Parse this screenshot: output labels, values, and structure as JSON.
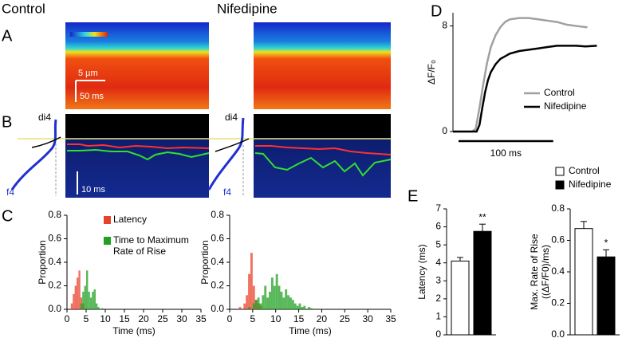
{
  "labels": {
    "control": "Control",
    "nifedipine": "Nifedipine",
    "A": "A",
    "B": "B",
    "C": "C",
    "D": "D",
    "E": "E",
    "scale_um": "5 µm",
    "scale_ms_a": "50 ms",
    "scale_ms_b": "10 ms",
    "di4_control": "di4",
    "f4_control": "f4",
    "di4_nif": "di4",
    "f4_nif": "f4"
  },
  "chart_data": [
    {
      "type": "histogram",
      "xlabel": "Time (ms)",
      "ylabel": "Proportion",
      "bins": [
        1,
        1.5,
        2,
        2.5,
        3,
        3.5,
        4,
        4.5,
        5,
        5.5,
        6,
        6.5,
        7,
        7.5,
        8,
        8.5,
        9,
        9.5,
        10
      ],
      "series": [
        {
          "name": "Latency",
          "color": "#e8432a",
          "values": [
            0.05,
            0.13,
            0.2,
            0.27,
            0.33,
            0.1,
            0.05,
            0,
            0,
            0,
            0,
            0,
            0,
            0,
            0,
            0,
            0,
            0
          ]
        },
        {
          "name": "Time to Maximum Rate of Rise",
          "color": "#22a022",
          "values": [
            0,
            0,
            0,
            0,
            0,
            0.05,
            0.15,
            0.2,
            0.33,
            0.15,
            0.1,
            0.15,
            0.17,
            0.05,
            0.02,
            0,
            0.01,
            0
          ]
        }
      ],
      "xlim": [
        0,
        35
      ],
      "xticks": [
        0,
        5,
        10,
        15,
        20,
        25,
        30,
        35
      ],
      "ylim": [
        0,
        0.8
      ],
      "yticks": [
        {
          "value": 0,
          "label": "0.0"
        },
        0.2,
        0.4,
        0.6,
        0.8
      ]
    },
    {
      "type": "histogram",
      "xlabel": "Time (ms)",
      "ylabel": "Proportion",
      "bins": [
        2,
        2.5,
        3,
        3.5,
        4,
        4.5,
        5,
        5.5,
        6,
        6.5,
        7,
        7.5,
        8,
        8.5,
        9,
        9.5,
        10,
        10.5,
        11,
        11.5,
        12,
        12.5,
        13,
        13.5,
        14,
        14.5,
        15,
        15.5,
        16,
        16.5,
        17,
        17.5,
        18,
        18.5,
        19
      ],
      "series": [
        {
          "color": "#e8432a",
          "values": [
            0.02,
            0,
            0.05,
            0.12,
            0.3,
            0.48,
            0.2,
            0.08,
            0.05,
            0.03,
            0,
            0,
            0,
            0,
            0,
            0,
            0,
            0,
            0,
            0,
            0,
            0,
            0,
            0,
            0,
            0,
            0,
            0,
            0,
            0,
            0,
            0,
            0,
            0
          ]
        },
        {
          "color": "#22a022",
          "values": [
            0,
            0,
            0,
            0,
            0.02,
            0,
            0.05,
            0.08,
            0.1,
            0.05,
            0.12,
            0.2,
            0.1,
            0.15,
            0.27,
            0.2,
            0.3,
            0.2,
            0.15,
            0.1,
            0.17,
            0.12,
            0.1,
            0.08,
            0.05,
            0.03,
            0.05,
            0.02,
            0.03,
            0,
            0.02,
            0.01,
            0,
            0
          ]
        }
      ],
      "xlim": [
        0,
        35
      ],
      "xticks": [
        0,
        5,
        10,
        15,
        20,
        25,
        30,
        35
      ],
      "ylim": [
        0,
        0.8
      ],
      "yticks": [
        {
          "value": 0,
          "label": "0.0"
        },
        0.2,
        0.4,
        0.6,
        0.8
      ]
    },
    {
      "type": "line",
      "ylabel": "ΔF/F₀",
      "legend": "lower right",
      "series": [
        {
          "name": "Control",
          "color": "#a0a0a0",
          "x": [
            0,
            10,
            20,
            24,
            28,
            32,
            36,
            40,
            45,
            50,
            55,
            60,
            70,
            80,
            90,
            100,
            110,
            120,
            130,
            142
          ],
          "values": [
            0,
            0,
            0,
            0.2,
            1.8,
            3.6,
            5.2,
            6.4,
            7.3,
            7.9,
            8.3,
            8.5,
            8.6,
            8.6,
            8.5,
            8.4,
            8.3,
            8.1,
            8.0,
            7.9
          ]
        },
        {
          "name": "Nifedipine",
          "color": "#000000",
          "x": [
            0,
            10,
            20,
            25,
            28,
            31,
            34,
            37,
            40,
            45,
            50,
            60,
            70,
            80,
            90,
            100,
            110,
            120,
            130,
            140,
            152
          ],
          "values": [
            0,
            0,
            0,
            0,
            0.5,
            1.8,
            3.0,
            3.9,
            4.5,
            5.1,
            5.5,
            5.9,
            6.1,
            6.2,
            6.3,
            6.4,
            6.5,
            6.5,
            6.5,
            6.45,
            6.5
          ]
        }
      ],
      "xlim": [
        0,
        155
      ],
      "ylim": [
        0,
        9
      ],
      "yticks": [
        0,
        8
      ],
      "scalebar": {
        "value": 100,
        "label": "100 ms"
      }
    },
    {
      "type": "bar",
      "ylabel": [
        "Latency (ms)"
      ],
      "categories": [
        "Control",
        "Nifedipine"
      ],
      "values": [
        4.1,
        5.75
      ],
      "errors": [
        0.2,
        0.4
      ],
      "colors": [
        "#ffffff",
        "#000000"
      ],
      "annotation": "**",
      "ylim": [
        0,
        7
      ],
      "yticks": [
        0,
        1,
        2,
        3,
        4,
        5,
        6,
        7
      ]
    },
    {
      "type": "bar",
      "ylabel": [
        "Max. Rate of Rise",
        "((ΔF/F0)/ms)"
      ],
      "values": [
        0.675,
        0.495
      ],
      "errors": [
        0.045,
        0.045
      ],
      "colors": [
        "#ffffff",
        "#000000"
      ],
      "annotation": "*",
      "ylim": [
        0,
        0.8
      ],
      "yticks": [
        {
          "value": 0,
          "label": "0.0"
        },
        0.2,
        0.4,
        0.6,
        0.8
      ]
    }
  ]
}
